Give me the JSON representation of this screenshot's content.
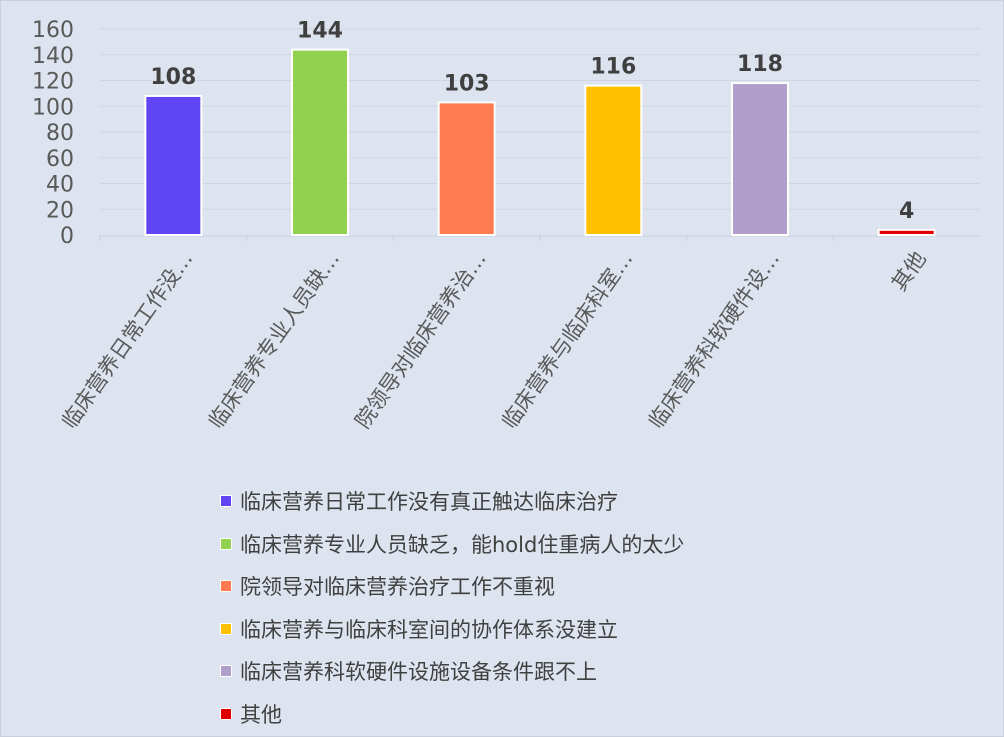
{
  "chart_data": {
    "type": "bar",
    "categories": [
      "临床营养日常工作没…",
      "临床营养专业人员缺…",
      "院领导对临床营养治…",
      "临床营养与临床科室…",
      "临床营养科软硬件设…",
      "其他"
    ],
    "legend_labels": [
      "临床营养日常工作没有真正触达临床治疗",
      "临床营养专业人员缺乏，能hold住重病人的太少",
      "院领导对临床营养治疗工作不重视",
      "临床营养与临床科室间的协作体系没建立",
      "临床营养科软硬件设施设备条件跟不上",
      "其他"
    ],
    "values": [
      108,
      144,
      103,
      116,
      118,
      4
    ],
    "colors": [
      "#6045f5",
      "#92d050",
      "#ff7b4f",
      "#ffc000",
      "#b09fcb",
      "#e00000"
    ],
    "ylim": [
      0,
      160
    ],
    "yticks": [
      0,
      20,
      40,
      60,
      80,
      100,
      120,
      140,
      160
    ],
    "grid": true,
    "legend_position": "bottom",
    "title": "",
    "xlabel": "",
    "ylabel": ""
  }
}
